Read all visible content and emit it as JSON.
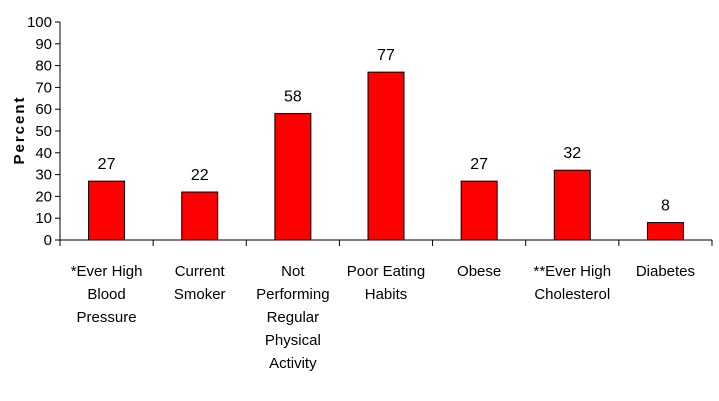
{
  "chart_data": {
    "type": "bar",
    "categories": [
      "*Ever High Blood Pressure",
      "Current Smoker",
      "Not Performing Regular Physical Activity",
      "Poor Eating Habits",
      "Obese",
      "**Ever High Cholesterol",
      "Diabetes"
    ],
    "category_lines": [
      [
        "*Ever High",
        "Blood",
        "Pressure"
      ],
      [
        "Current",
        "Smoker"
      ],
      [
        "Not",
        "Performing",
        "Regular",
        "Physical",
        "Activity"
      ],
      [
        "Poor Eating",
        "Habits"
      ],
      [
        "Obese"
      ],
      [
        "**Ever High",
        "Cholesterol"
      ],
      [
        "Diabetes"
      ]
    ],
    "values": [
      27,
      22,
      58,
      77,
      27,
      32,
      8
    ],
    "title": "",
    "xlabel": "",
    "ylabel": "Percent",
    "ylim": [
      0,
      100
    ],
    "yticks": [
      0,
      10,
      20,
      30,
      40,
      50,
      60,
      70,
      80,
      90,
      100
    ],
    "bar_color": "#ff0000",
    "bar_stroke": "#000000",
    "grid": false,
    "legend": "none"
  }
}
